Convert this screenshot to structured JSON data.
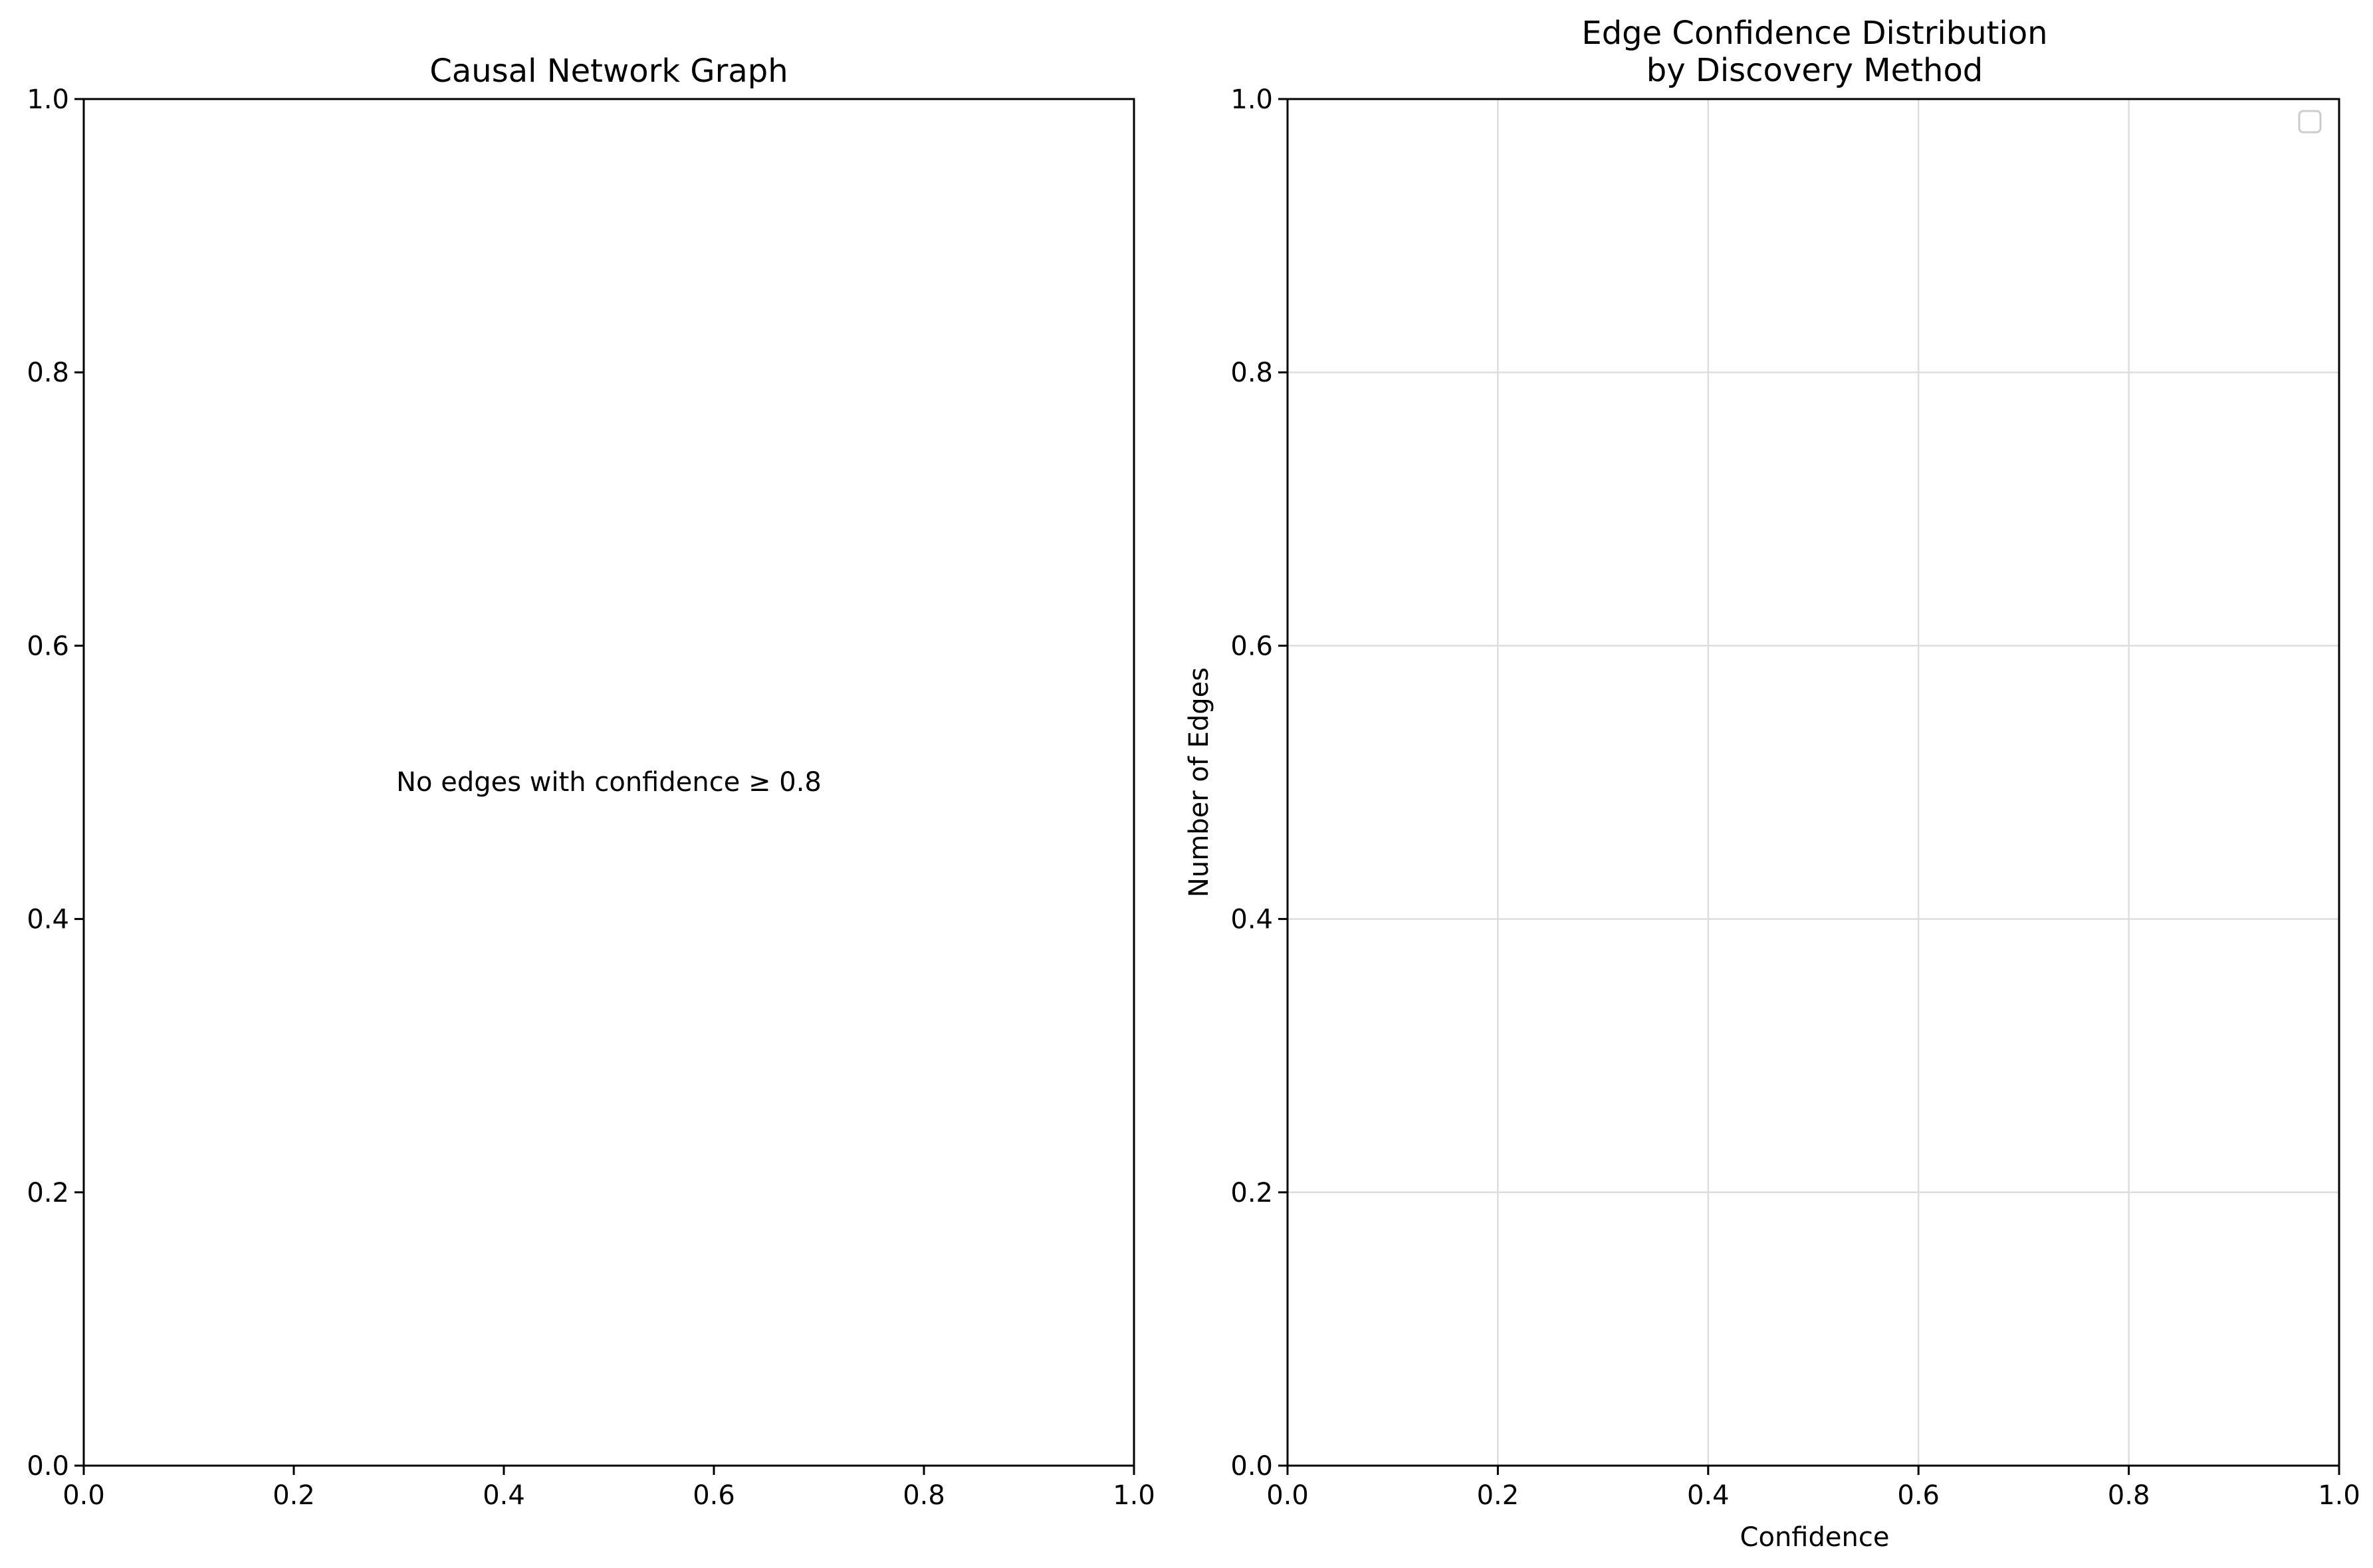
{
  "chart_data": [
    {
      "type": "network",
      "title": "Causal Network Graph",
      "xlabel": "",
      "ylabel": "",
      "xlim": [
        0,
        1
      ],
      "ylim": [
        0,
        1
      ],
      "xticks": [
        "0.0",
        "0.2",
        "0.4",
        "0.6",
        "0.8",
        "1.0"
      ],
      "yticks": [
        "0.0",
        "0.2",
        "0.4",
        "0.6",
        "0.8",
        "1.0"
      ],
      "grid": false,
      "nodes": [],
      "edges": [],
      "annotation": "No edges with confidence ≥ 0.8"
    },
    {
      "type": "histogram",
      "title_lines": [
        "Edge Confidence Distribution",
        "by Discovery Method"
      ],
      "xlabel": "Confidence",
      "ylabel": "Number of Edges",
      "xlim": [
        0,
        1
      ],
      "ylim": [
        0,
        1
      ],
      "xticks": [
        "0.0",
        "0.2",
        "0.4",
        "0.6",
        "0.8",
        "1.0"
      ],
      "yticks": [
        "0.0",
        "0.2",
        "0.4",
        "0.6",
        "0.8",
        "1.0"
      ],
      "grid": true,
      "legend": "top-right",
      "series": []
    }
  ]
}
